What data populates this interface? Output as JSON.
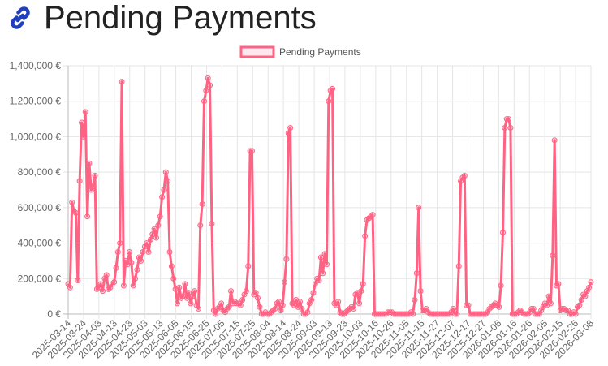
{
  "page": {
    "title": "Pending Payments",
    "icon": "link-icon",
    "accent_color": "#1f3fbf"
  },
  "chart_data": {
    "type": "line",
    "title": "",
    "xlabel": "",
    "ylabel": "",
    "legend_position": "top-center",
    "grid": true,
    "color": "#ff6384",
    "ylim": [
      0,
      1400000
    ],
    "y_ticks": [
      "0 €",
      "200,000 €",
      "400,000 €",
      "600,000 €",
      "800,000 €",
      "1,000,000 €",
      "1,200,000 €",
      "1,400,000 €"
    ],
    "x_ticks": [
      "2025-03-14",
      "2025-03-24",
      "2025-04-03",
      "2025-04-13",
      "2025-04-23",
      "2025-05-03",
      "2025-05-13",
      "2025-06-05",
      "2025-06-15",
      "2025-06-25",
      "2025-07-05",
      "2025-07-15",
      "2025-07-25",
      "2025-08-04",
      "2025-08-14",
      "2025-08-24",
      "2025-09-03",
      "2025-09-13",
      "2025-09-23",
      "2025-10-03",
      "2025-10-16",
      "2025-10-26",
      "2025-11-05",
      "2025-11-15",
      "2025-11-27",
      "2025-12-07",
      "2025-12-17",
      "2025-12-27",
      "2026-01-06",
      "2026-01-16",
      "2026-01-26",
      "2026-02-05",
      "2026-02-15",
      "2026-02-26",
      "2026-03-08"
    ],
    "series": [
      {
        "name": "Pending Payments",
        "values": [
          170000,
          150000,
          630000,
          580000,
          570000,
          190000,
          750000,
          1080000,
          1000000,
          1140000,
          550000,
          850000,
          700000,
          720000,
          780000,
          140000,
          150000,
          170000,
          130000,
          200000,
          220000,
          140000,
          150000,
          170000,
          180000,
          260000,
          350000,
          400000,
          1310000,
          160000,
          300000,
          280000,
          350000,
          290000,
          160000,
          200000,
          250000,
          320000,
          300000,
          350000,
          380000,
          400000,
          350000,
          420000,
          450000,
          480000,
          430000,
          500000,
          550000,
          660000,
          700000,
          800000,
          750000,
          350000,
          270000,
          200000,
          140000,
          60000,
          150000,
          90000,
          100000,
          170000,
          90000,
          120000,
          60000,
          100000,
          130000,
          50000,
          30000,
          500000,
          620000,
          1200000,
          1260000,
          1330000,
          1290000,
          510000,
          20000,
          0,
          30000,
          40000,
          60000,
          20000,
          10000,
          30000,
          40000,
          130000,
          60000,
          70000,
          60000,
          60000,
          50000,
          80000,
          110000,
          130000,
          270000,
          920000,
          920000,
          110000,
          120000,
          90000,
          40000,
          0,
          0,
          10000,
          0,
          0,
          10000,
          20000,
          30000,
          60000,
          70000,
          20000,
          50000,
          180000,
          310000,
          1020000,
          1050000,
          60000,
          50000,
          80000,
          40000,
          70000,
          30000,
          0,
          0,
          10000,
          60000,
          80000,
          120000,
          170000,
          200000,
          190000,
          320000,
          230000,
          340000,
          280000,
          1200000,
          1260000,
          1270000,
          60000,
          50000,
          70000,
          10000,
          0,
          0,
          10000,
          20000,
          30000,
          40000,
          30000,
          110000,
          120000,
          60000,
          130000,
          170000,
          440000,
          530000,
          540000,
          550000,
          560000,
          0,
          0,
          0,
          0,
          0,
          0,
          0,
          10000,
          10000,
          10000,
          0,
          0,
          0,
          0,
          0,
          0,
          0,
          0,
          0,
          10000,
          0,
          80000,
          230000,
          600000,
          130000,
          20000,
          20000,
          30000,
          10000,
          0,
          0,
          0,
          0,
          0,
          0,
          0,
          0,
          0,
          0,
          0,
          10000,
          30000,
          0,
          0,
          270000,
          750000,
          770000,
          780000,
          50000,
          50000,
          0,
          0,
          0,
          0,
          0,
          0,
          0,
          0,
          0,
          10000,
          30000,
          40000,
          50000,
          60000,
          50000,
          40000,
          160000,
          460000,
          1050000,
          1100000,
          1100000,
          1050000,
          0,
          0,
          0,
          10000,
          20000,
          10000,
          0,
          0,
          0,
          10000,
          30000,
          30000,
          0,
          0,
          0,
          20000,
          40000,
          60000,
          50000,
          100000,
          60000,
          330000,
          980000,
          160000,
          170000,
          20000,
          30000,
          30000,
          20000,
          20000,
          0,
          0,
          10000,
          0,
          40000,
          50000,
          80000,
          110000,
          100000,
          130000,
          150000,
          180000
        ]
      }
    ]
  }
}
